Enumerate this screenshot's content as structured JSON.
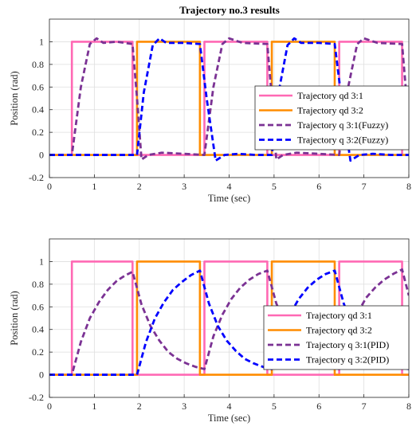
{
  "figure_title": "Trajectory no.3 results",
  "chart_data": [
    {
      "type": "line",
      "title": "Trajectory no.3 results",
      "xlabel": "Time (sec)",
      "ylabel": "Position (rad)",
      "xlim": [
        0,
        8
      ],
      "ylim": [
        -0.2,
        1.2
      ],
      "xticks": [
        0,
        1,
        2,
        3,
        4,
        5,
        6,
        7,
        8
      ],
      "yticks": [
        -0.2,
        0,
        0.2,
        0.4,
        0.6,
        0.8,
        1
      ],
      "grid": true,
      "legend_position": "right",
      "series": [
        {
          "name": "Trajectory qd 3:1",
          "color": "#ff69b4",
          "dash": "solid",
          "x": [
            0,
            0.5,
            0.5,
            1.85,
            1.85,
            3.45,
            3.45,
            4.85,
            4.85,
            6.45,
            6.45,
            7.85,
            7.85,
            8
          ],
          "y": [
            0,
            0,
            1,
            1,
            0,
            0,
            1,
            1,
            0,
            0,
            1,
            1,
            0,
            0
          ]
        },
        {
          "name": "Trajectory qd 3:2",
          "color": "#ff8c00",
          "dash": "solid",
          "x": [
            0,
            1.95,
            1.95,
            3.35,
            3.35,
            4.95,
            4.95,
            6.35,
            6.35,
            8
          ],
          "y": [
            0,
            0,
            1,
            1,
            0,
            0,
            1,
            1,
            0,
            0
          ]
        },
        {
          "name": "Trajectory q 3:1(Fuzzy)",
          "color": "#7b3294",
          "dash": "dashed",
          "x": [
            0,
            0.5,
            0.7,
            0.9,
            1.05,
            1.2,
            1.5,
            1.85,
            1.95,
            2.05,
            2.2,
            2.5,
            3.0,
            3.45,
            3.65,
            3.85,
            4.0,
            4.3,
            4.85,
            4.95,
            5.05,
            5.2,
            5.5,
            6.0,
            6.45,
            6.65,
            6.85,
            7.0,
            7.3,
            7.85,
            7.95,
            8.0
          ],
          "y": [
            0,
            0,
            0.6,
            0.98,
            1.03,
            0.99,
            1.0,
            0.98,
            0.5,
            -0.04,
            0.0,
            0.02,
            0.01,
            0.0,
            0.6,
            0.98,
            1.03,
            0.99,
            0.98,
            0.5,
            -0.04,
            0.0,
            0.02,
            0.01,
            0.0,
            0.6,
            0.98,
            1.03,
            0.99,
            0.98,
            0.5,
            0.2
          ]
        },
        {
          "name": "Trajectory q 3:2(Fuzzy)",
          "color": "#0000ff",
          "dash": "dashed",
          "x": [
            0,
            1.95,
            2.1,
            2.3,
            2.45,
            2.6,
            3.0,
            3.35,
            3.5,
            3.7,
            3.9,
            4.2,
            4.6,
            4.95,
            5.1,
            5.3,
            5.45,
            5.6,
            6.0,
            6.35,
            6.5,
            6.7,
            6.9,
            7.2,
            7.6,
            8.0
          ],
          "y": [
            0,
            0,
            0.55,
            0.97,
            1.03,
            0.99,
            0.99,
            0.98,
            0.5,
            -0.05,
            0.0,
            0.01,
            0.0,
            0.0,
            0.55,
            0.97,
            1.03,
            0.99,
            0.99,
            0.98,
            0.5,
            -0.05,
            0.0,
            0.01,
            0.0,
            0.0
          ]
        }
      ]
    },
    {
      "type": "line",
      "title": "",
      "xlabel": "Time (sec)",
      "ylabel": "Position (rad)",
      "xlim": [
        0,
        8
      ],
      "ylim": [
        -0.2,
        1.2
      ],
      "xticks": [
        0,
        1,
        2,
        3,
        4,
        5,
        6,
        7,
        8
      ],
      "yticks": [
        -0.2,
        0,
        0.2,
        0.4,
        0.6,
        0.8,
        1
      ],
      "grid": true,
      "legend_position": "right",
      "series": [
        {
          "name": "Trajectory qd 3:1",
          "color": "#ff69b4",
          "dash": "solid",
          "x": [
            0,
            0.5,
            0.5,
            1.85,
            1.85,
            3.45,
            3.45,
            4.85,
            4.85,
            6.45,
            6.45,
            7.85,
            7.85,
            8
          ],
          "y": [
            0,
            0,
            1,
            1,
            0,
            0,
            1,
            1,
            0,
            0,
            1,
            1,
            0,
            0
          ]
        },
        {
          "name": "Trajectory qd 3:2",
          "color": "#ff8c00",
          "dash": "solid",
          "x": [
            0,
            1.95,
            1.95,
            3.35,
            3.35,
            4.95,
            4.95,
            6.35,
            6.35,
            8
          ],
          "y": [
            0,
            0,
            1,
            1,
            0,
            0,
            1,
            1,
            0,
            0
          ]
        },
        {
          "name": "Trajectory q 3:1(PID)",
          "color": "#7b3294",
          "dash": "dashed",
          "x": [
            0,
            0.5,
            0.7,
            0.9,
            1.1,
            1.3,
            1.5,
            1.7,
            1.85,
            2.05,
            2.25,
            2.45,
            2.65,
            2.85,
            3.05,
            3.25,
            3.45,
            3.65,
            3.85,
            4.05,
            4.25,
            4.45,
            4.65,
            4.85,
            5.05,
            5.25,
            5.45,
            5.65,
            5.85,
            6.05,
            6.25,
            6.45,
            6.65,
            6.85,
            7.05,
            7.25,
            7.45,
            7.65,
            7.85,
            8.0
          ],
          "y": [
            0,
            0,
            0.29,
            0.5,
            0.64,
            0.75,
            0.83,
            0.88,
            0.91,
            0.62,
            0.43,
            0.3,
            0.2,
            0.14,
            0.1,
            0.07,
            0.05,
            0.34,
            0.53,
            0.67,
            0.77,
            0.84,
            0.89,
            0.92,
            0.63,
            0.44,
            0.3,
            0.21,
            0.14,
            0.1,
            0.07,
            0.05,
            0.34,
            0.54,
            0.68,
            0.77,
            0.84,
            0.89,
            0.93,
            0.7
          ]
        },
        {
          "name": "Trajectory q 3:2(PID)",
          "color": "#0000ff",
          "dash": "dashed",
          "x": [
            0,
            1.95,
            2.15,
            2.35,
            2.55,
            2.75,
            2.95,
            3.15,
            3.35,
            3.55,
            3.75,
            3.95,
            4.15,
            4.35,
            4.55,
            4.75,
            4.95,
            5.15,
            5.35,
            5.55,
            5.75,
            5.95,
            6.15,
            6.35,
            6.55,
            6.75,
            6.95,
            7.15,
            7.35,
            7.55,
            7.75,
            8.0
          ],
          "y": [
            0,
            0,
            0.29,
            0.5,
            0.64,
            0.75,
            0.82,
            0.88,
            0.92,
            0.63,
            0.43,
            0.3,
            0.21,
            0.14,
            0.1,
            0.07,
            0.05,
            0.33,
            0.53,
            0.67,
            0.77,
            0.84,
            0.89,
            0.92,
            0.63,
            0.43,
            0.3,
            0.21,
            0.14,
            0.1,
            0.07,
            0.05
          ]
        }
      ]
    }
  ]
}
